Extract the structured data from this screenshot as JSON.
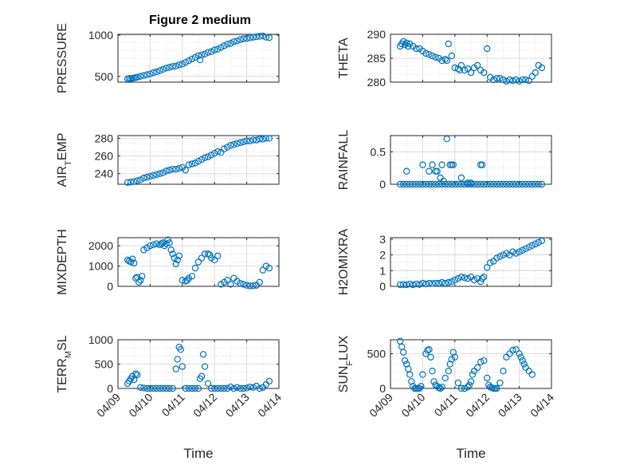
{
  "figure": {
    "title": "Figure 2 medium",
    "xlabel": "Time",
    "x_ticks": [
      "04/09",
      "04/10",
      "04/11",
      "04/12",
      "04/13",
      "04/14"
    ],
    "marker_color": "#0072BD",
    "grid_color": "#d9d9d9"
  },
  "chart_data": [
    {
      "type": "scatter",
      "ylabel": "PRESSURE",
      "ylim": [
        430,
        1010
      ],
      "yticks": [
        500,
        1000
      ],
      "xlim": [
        0,
        5
      ],
      "grid": true,
      "x": [
        0.3,
        0.35,
        0.4,
        0.45,
        0.5,
        0.55,
        0.6,
        0.7,
        0.8,
        0.9,
        1.0,
        1.1,
        1.2,
        1.3,
        1.4,
        1.5,
        1.6,
        1.7,
        1.8,
        1.9,
        2.0,
        2.1,
        2.2,
        2.3,
        2.4,
        2.5,
        2.55,
        2.6,
        2.7,
        2.8,
        2.9,
        3.0,
        3.1,
        3.2,
        3.3,
        3.4,
        3.5,
        3.6,
        3.7,
        3.8,
        3.9,
        4.0,
        4.1,
        4.2,
        4.3,
        4.4,
        4.5,
        4.6,
        4.7
      ],
      "y": [
        470,
        475,
        472,
        478,
        480,
        485,
        490,
        500,
        510,
        520,
        530,
        545,
        555,
        570,
        585,
        600,
        610,
        620,
        625,
        640,
        650,
        670,
        690,
        710,
        730,
        750,
        700,
        760,
        770,
        790,
        800,
        820,
        830,
        850,
        870,
        890,
        900,
        920,
        930,
        945,
        955,
        960,
        968,
        975,
        980,
        985,
        990,
        975,
        970
      ]
    },
    {
      "type": "scatter",
      "ylabel": "THETA",
      "ylim": [
        280,
        290
      ],
      "yticks": [
        280,
        285,
        290
      ],
      "xlim": [
        0,
        5
      ],
      "grid": true,
      "x": [
        0.3,
        0.35,
        0.4,
        0.45,
        0.5,
        0.55,
        0.6,
        0.7,
        0.8,
        0.9,
        1.0,
        1.1,
        1.2,
        1.3,
        1.4,
        1.5,
        1.6,
        1.7,
        1.75,
        1.8,
        1.9,
        2.0,
        2.1,
        2.15,
        2.2,
        2.3,
        2.4,
        2.5,
        2.6,
        2.7,
        2.8,
        2.9,
        3.0,
        3.1,
        3.2,
        3.3,
        3.4,
        3.5,
        3.6,
        3.7,
        3.8,
        3.9,
        4.0,
        4.1,
        4.2,
        4.3,
        4.4,
        4.5,
        4.6,
        4.7
      ],
      "y": [
        287.5,
        288,
        288.5,
        287.8,
        288.2,
        287.5,
        288,
        287.5,
        287,
        287,
        286.5,
        286,
        285.8,
        285.5,
        285.2,
        285,
        284.5,
        284.8,
        284.5,
        288,
        285.5,
        283,
        282.8,
        282.5,
        283.5,
        282.5,
        282.8,
        282,
        283,
        283.5,
        282.5,
        282,
        287,
        281,
        280.5,
        280.8,
        280.8,
        280.5,
        280.2,
        280.5,
        280.3,
        280.5,
        280.2,
        280.5,
        280.5,
        280.3,
        281.2,
        282,
        283.5,
        283
      ]
    },
    {
      "type": "scatter",
      "ylabel": "AIR_TEMP",
      "ylim": [
        228,
        283
      ],
      "yticks": [
        240,
        260,
        280
      ],
      "xlim": [
        0,
        5
      ],
      "grid": true,
      "x": [
        0.3,
        0.4,
        0.5,
        0.6,
        0.7,
        0.8,
        0.9,
        1.0,
        1.1,
        1.2,
        1.3,
        1.4,
        1.5,
        1.6,
        1.7,
        1.8,
        1.9,
        2.0,
        2.1,
        2.2,
        2.3,
        2.4,
        2.5,
        2.6,
        2.7,
        2.8,
        2.9,
        3.0,
        3.1,
        3.2,
        3.3,
        3.4,
        3.5,
        3.6,
        3.7,
        3.8,
        3.9,
        4.0,
        4.1,
        4.2,
        4.3,
        4.4,
        4.5,
        4.6,
        4.7
      ],
      "y": [
        230,
        230.5,
        231,
        232,
        233,
        235,
        236,
        237,
        238,
        239,
        240,
        241,
        243,
        244,
        245,
        245,
        246,
        247,
        244,
        250,
        251,
        252,
        254,
        256,
        258,
        259,
        261,
        263,
        265,
        264,
        268,
        270,
        272,
        273,
        274,
        275,
        276,
        277,
        277,
        278,
        278,
        279,
        279,
        280,
        280
      ]
    },
    {
      "type": "scatter",
      "ylabel": "RAINFALL",
      "ylim": [
        0,
        0.75
      ],
      "yticks": [
        0,
        0.5
      ],
      "xlim": [
        0,
        5
      ],
      "grid": true,
      "x": [
        0.3,
        0.4,
        0.5,
        0.6,
        0.7,
        0.8,
        0.9,
        1.0,
        1.1,
        1.2,
        1.3,
        1.4,
        1.5,
        1.6,
        1.7,
        1.8,
        1.9,
        2.0,
        2.1,
        2.2,
        2.3,
        2.4,
        2.5,
        2.6,
        2.7,
        2.8,
        2.9,
        3.0,
        3.1,
        3.2,
        3.3,
        3.4,
        3.5,
        3.6,
        3.7,
        3.8,
        3.9,
        4.0,
        4.1,
        4.2,
        4.3,
        4.4,
        4.5,
        4.6,
        4.7,
        0.5,
        1.0,
        1.2,
        1.3,
        1.4,
        1.45,
        1.55,
        1.6,
        1.65,
        1.75,
        1.85,
        1.9,
        1.95,
        2.2,
        2.4,
        2.5,
        2.8,
        2.85
      ],
      "y": [
        0,
        0,
        0,
        0,
        0,
        0,
        0,
        0,
        0,
        0,
        0,
        0,
        0,
        0,
        0,
        0,
        0,
        0,
        0,
        0,
        0,
        0,
        0,
        0,
        0,
        0,
        0,
        0,
        0,
        0,
        0,
        0,
        0,
        0,
        0,
        0,
        0,
        0,
        0,
        0,
        0,
        0,
        0,
        0,
        0,
        0.2,
        0.3,
        0.2,
        0.3,
        0.2,
        0.2,
        0.1,
        0.3,
        0.05,
        0.7,
        0.3,
        0.3,
        0.3,
        0.1,
        0.02,
        0.02,
        0.3,
        0.3
      ]
    },
    {
      "type": "scatter",
      "ylabel": "MIXDEPTH",
      "ylim": [
        0,
        2400
      ],
      "yticks": [
        0,
        1000,
        2000
      ],
      "xlim": [
        0,
        5
      ],
      "grid": true,
      "x": [
        0.3,
        0.35,
        0.4,
        0.45,
        0.5,
        0.55,
        0.6,
        0.65,
        0.7,
        0.75,
        0.8,
        0.9,
        1.0,
        1.1,
        1.2,
        1.3,
        1.35,
        1.4,
        1.45,
        1.5,
        1.55,
        1.6,
        1.65,
        1.7,
        1.75,
        1.8,
        1.85,
        1.9,
        2.0,
        2.1,
        2.15,
        2.2,
        2.3,
        2.4,
        2.5,
        2.6,
        2.7,
        2.8,
        2.85,
        2.9,
        3.0,
        3.1,
        3.2,
        3.3,
        3.4,
        3.5,
        3.6,
        3.7,
        3.8,
        3.9,
        4.0,
        4.1,
        4.2,
        4.3,
        4.4,
        4.5,
        4.6,
        4.7
      ],
      "y": [
        1300,
        1250,
        1200,
        1350,
        1150,
        400,
        450,
        200,
        300,
        500,
        1800,
        1900,
        2000,
        2050,
        2100,
        2050,
        2100,
        2150,
        2000,
        2100,
        2300,
        2150,
        1800,
        1600,
        1400,
        1100,
        1300,
        1500,
        300,
        250,
        300,
        400,
        500,
        900,
        1200,
        1400,
        1600,
        1600,
        1550,
        1400,
        1300,
        1500,
        100,
        200,
        300,
        100,
        400,
        250,
        150,
        100,
        50,
        20,
        30,
        50,
        200,
        800,
        1000,
        900
      ]
    },
    {
      "type": "scatter",
      "ylabel": "H2OMIXRA",
      "ylim": [
        0,
        3.1
      ],
      "yticks": [
        0,
        1,
        2,
        3
      ],
      "xlim": [
        0,
        5
      ],
      "grid": true,
      "x": [
        0.3,
        0.4,
        0.5,
        0.6,
        0.7,
        0.8,
        0.9,
        1.0,
        1.1,
        1.2,
        1.3,
        1.4,
        1.5,
        1.6,
        1.7,
        1.8,
        1.9,
        2.0,
        2.1,
        2.2,
        2.3,
        2.4,
        2.5,
        2.6,
        2.7,
        2.8,
        2.85,
        2.9,
        3.0,
        3.1,
        3.2,
        3.3,
        3.4,
        3.5,
        3.6,
        3.7,
        3.8,
        3.9,
        4.0,
        4.1,
        4.2,
        4.3,
        4.4,
        4.5,
        4.6,
        4.7
      ],
      "y": [
        0.1,
        0.12,
        0.1,
        0.15,
        0.1,
        0.15,
        0.12,
        0.2,
        0.15,
        0.2,
        0.18,
        0.2,
        0.2,
        0.25,
        0.2,
        0.25,
        0.3,
        0.4,
        0.5,
        0.6,
        0.55,
        0.5,
        0.6,
        0.4,
        0.5,
        0.3,
        0.5,
        0.6,
        1.2,
        1.5,
        1.6,
        1.8,
        1.9,
        2.0,
        2.1,
        2.0,
        2.2,
        2.1,
        2.2,
        2.3,
        2.4,
        2.5,
        2.6,
        2.7,
        2.8,
        2.9
      ]
    },
    {
      "type": "scatter",
      "ylabel": "TERR_MSL",
      "ylim": [
        0,
        1000
      ],
      "yticks": [
        0,
        500,
        1000
      ],
      "xlim": [
        0,
        5
      ],
      "grid": true,
      "x": [
        0.3,
        0.35,
        0.4,
        0.45,
        0.5,
        0.55,
        0.6,
        0.7,
        0.8,
        0.9,
        1.0,
        1.1,
        1.2,
        1.3,
        1.4,
        1.5,
        1.6,
        1.7,
        1.8,
        1.85,
        1.9,
        1.95,
        2.0,
        2.1,
        2.2,
        2.3,
        2.4,
        2.5,
        2.55,
        2.6,
        2.65,
        2.7,
        2.8,
        2.9,
        3.0,
        3.1,
        3.2,
        3.3,
        3.4,
        3.5,
        3.6,
        3.7,
        3.8,
        3.9,
        4.0,
        4.1,
        4.2,
        4.3,
        4.4,
        4.5,
        4.6,
        4.7
      ],
      "y": [
        100,
        150,
        200,
        250,
        180,
        300,
        280,
        20,
        10,
        0,
        0,
        0,
        0,
        0,
        0,
        0,
        0,
        0,
        400,
        600,
        850,
        800,
        450,
        0,
        0,
        0,
        0,
        0,
        200,
        250,
        700,
        450,
        100,
        0,
        0,
        0,
        0,
        0,
        0,
        30,
        0,
        20,
        0,
        0,
        10,
        30,
        20,
        50,
        0,
        20,
        80,
        150
      ]
    },
    {
      "type": "scatter",
      "ylabel": "SUN_FLUX",
      "ylim": [
        0,
        700
      ],
      "yticks": [
        0,
        500
      ],
      "xlim": [
        0,
        5
      ],
      "grid": true,
      "x": [
        0.3,
        0.35,
        0.4,
        0.45,
        0.5,
        0.55,
        0.6,
        0.65,
        0.7,
        0.75,
        0.8,
        0.85,
        0.9,
        0.95,
        1.0,
        1.1,
        1.15,
        1.2,
        1.25,
        1.3,
        1.35,
        1.4,
        1.45,
        1.5,
        1.55,
        1.6,
        1.7,
        1.8,
        1.85,
        1.9,
        1.95,
        2.0,
        2.1,
        2.2,
        2.3,
        2.4,
        2.45,
        2.5,
        2.55,
        2.6,
        2.7,
        2.8,
        2.9,
        3.0,
        3.05,
        3.1,
        3.15,
        3.2,
        3.25,
        3.3,
        3.4,
        3.5,
        3.6,
        3.7,
        3.8,
        3.9,
        4.0,
        4.05,
        4.1,
        4.15,
        4.2,
        4.3,
        4.4
      ],
      "y": [
        680,
        600,
        520,
        400,
        350,
        280,
        200,
        100,
        30,
        0,
        0,
        0,
        0,
        30,
        200,
        500,
        550,
        560,
        450,
        250,
        100,
        50,
        30,
        10,
        0,
        20,
        150,
        250,
        350,
        420,
        520,
        450,
        80,
        0,
        0,
        20,
        50,
        100,
        200,
        250,
        300,
        380,
        400,
        150,
        50,
        20,
        10,
        0,
        0,
        0,
        80,
        250,
        450,
        500,
        550,
        560,
        500,
        450,
        400,
        350,
        300,
        250,
        200
      ]
    }
  ]
}
